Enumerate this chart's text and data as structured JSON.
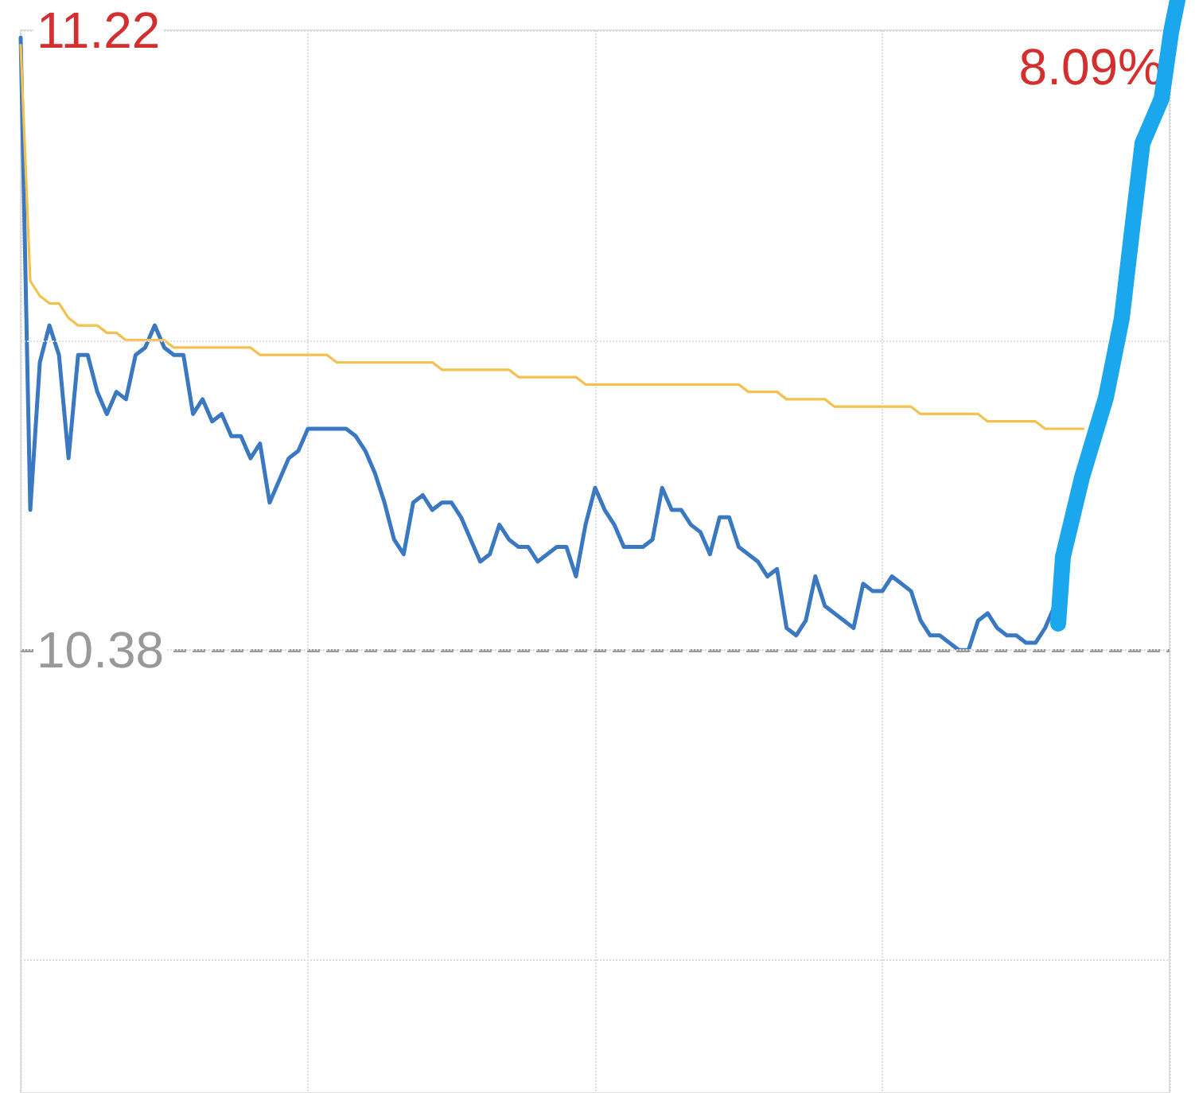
{
  "chart_data": {
    "type": "line",
    "categories": [
      null,
      null,
      null,
      null,
      null,
      null,
      null,
      null,
      null,
      null,
      null,
      null,
      null,
      null,
      null,
      null,
      null,
      null,
      null,
      null,
      null,
      null,
      null,
      null,
      null,
      null,
      null,
      null,
      null,
      null,
      null,
      null,
      null,
      null,
      null,
      null,
      null,
      null,
      null,
      null,
      null,
      null,
      null,
      null,
      null,
      null,
      null,
      null,
      null,
      null,
      null,
      null,
      null,
      null,
      null,
      null,
      null,
      null,
      null,
      null,
      null,
      null,
      null,
      null,
      null,
      null,
      null,
      null,
      null,
      null,
      null,
      null,
      null,
      null,
      null,
      null,
      null,
      null,
      null,
      null,
      null,
      null,
      null,
      null,
      null,
      null,
      null,
      null,
      null,
      null,
      null,
      null,
      null,
      null,
      null,
      null,
      null,
      null,
      null,
      null,
      null,
      null,
      null,
      null,
      null,
      null,
      null,
      null,
      null,
      null,
      null,
      null,
      null,
      null,
      null,
      null,
      null,
      null,
      null,
      null,
      null
    ],
    "ylim": [
      9.78,
      11.22
    ],
    "yticks": [
      {
        "value": 9.96,
        "label": null
      },
      {
        "value": 10.38,
        "label": "10.38"
      },
      {
        "value": 10.8,
        "label": null
      },
      {
        "value": 11.22,
        "label": "11.22"
      }
    ],
    "tick_labels": "y",
    "grid": true,
    "line_style": "solid",
    "series": [
      {
        "color": "#3a78c2",
        "values": [
          11.21,
          10.57,
          10.77,
          10.82,
          10.78,
          10.64,
          10.78,
          10.78,
          10.73,
          10.7,
          10.73,
          10.72,
          10.78,
          10.79,
          10.82,
          10.79,
          10.78,
          10.78,
          10.7,
          10.72,
          10.69,
          10.7,
          10.67,
          10.67,
          10.64,
          10.66,
          10.58,
          10.61,
          10.64,
          10.65,
          10.68,
          10.68,
          10.68,
          10.68,
          10.68,
          10.67,
          10.65,
          10.62,
          10.58,
          10.53,
          10.51,
          10.58,
          10.59,
          10.57,
          10.58,
          10.58,
          10.56,
          10.53,
          10.5,
          10.51,
          10.55,
          10.53,
          10.52,
          10.52,
          10.5,
          10.51,
          10.52,
          10.52,
          10.48,
          10.55,
          10.6,
          10.57,
          10.55,
          10.52,
          10.52,
          10.52,
          10.53,
          10.6,
          10.57,
          10.57,
          10.55,
          10.54,
          10.51,
          10.56,
          10.56,
          10.52,
          10.51,
          10.5,
          10.48,
          10.49,
          10.41,
          10.4,
          10.42,
          10.48,
          10.44,
          10.43,
          10.42,
          10.41,
          10.47,
          10.46,
          10.46,
          10.48,
          10.47,
          10.46,
          10.42,
          10.4,
          10.4,
          10.39,
          10.38,
          10.38,
          10.42,
          10.43,
          10.41,
          10.4,
          10.4,
          10.39,
          10.39,
          10.41,
          10.44,
          null,
          null,
          null,
          null,
          null,
          null,
          null,
          null,
          null,
          null,
          null,
          null
        ]
      },
      {
        "color": "#f2c14e",
        "values": [
          11.2,
          10.88,
          10.86,
          10.85,
          10.85,
          10.83,
          10.82,
          10.82,
          10.82,
          10.81,
          10.81,
          10.8,
          10.8,
          10.8,
          10.8,
          10.8,
          10.79,
          10.79,
          10.79,
          10.79,
          10.79,
          10.79,
          10.79,
          10.79,
          10.79,
          10.78,
          10.78,
          10.78,
          10.78,
          10.78,
          10.78,
          10.78,
          10.78,
          10.77,
          10.77,
          10.77,
          10.77,
          10.77,
          10.77,
          10.77,
          10.77,
          10.77,
          10.77,
          10.77,
          10.76,
          10.76,
          10.76,
          10.76,
          10.76,
          10.76,
          10.76,
          10.76,
          10.75,
          10.75,
          10.75,
          10.75,
          10.75,
          10.75,
          10.75,
          10.74,
          10.74,
          10.74,
          10.74,
          10.74,
          10.74,
          10.74,
          10.74,
          10.74,
          10.74,
          10.74,
          10.74,
          10.74,
          10.74,
          10.74,
          10.74,
          10.74,
          10.73,
          10.73,
          10.73,
          10.73,
          10.72,
          10.72,
          10.72,
          10.72,
          10.72,
          10.71,
          10.71,
          10.71,
          10.71,
          10.71,
          10.71,
          10.71,
          10.71,
          10.71,
          10.7,
          10.7,
          10.7,
          10.7,
          10.7,
          10.7,
          10.7,
          10.69,
          10.69,
          10.69,
          10.69,
          10.69,
          10.69,
          10.68,
          10.68,
          10.68,
          10.68,
          10.68,
          null,
          null,
          null,
          null,
          null,
          null,
          null,
          null,
          null
        ]
      }
    ],
    "ref_lines": [
      {
        "axis": "y",
        "value": 10.38,
        "color": "#999999",
        "line_style": "dashed"
      }
    ],
    "annotations": [
      "8.09%"
    ]
  }
}
